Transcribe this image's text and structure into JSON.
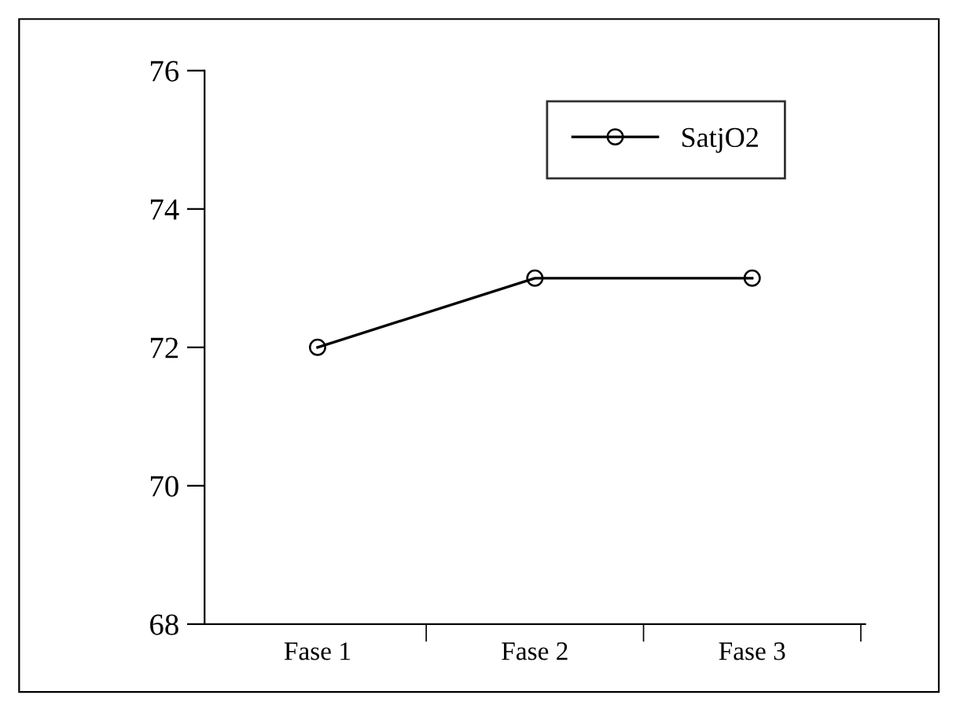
{
  "chart_data": {
    "type": "line",
    "categories": [
      "Fase 1",
      "Fase 2",
      "Fase 3"
    ],
    "series": [
      {
        "name": "SatjO2",
        "color": "#000000",
        "values": [
          72,
          73,
          73
        ]
      }
    ],
    "ylim": [
      68,
      76
    ],
    "yticks": [
      68,
      70,
      72,
      74,
      76
    ],
    "grid": false,
    "legend": "top right",
    "marker": "circle",
    "line_style": "solid"
  }
}
